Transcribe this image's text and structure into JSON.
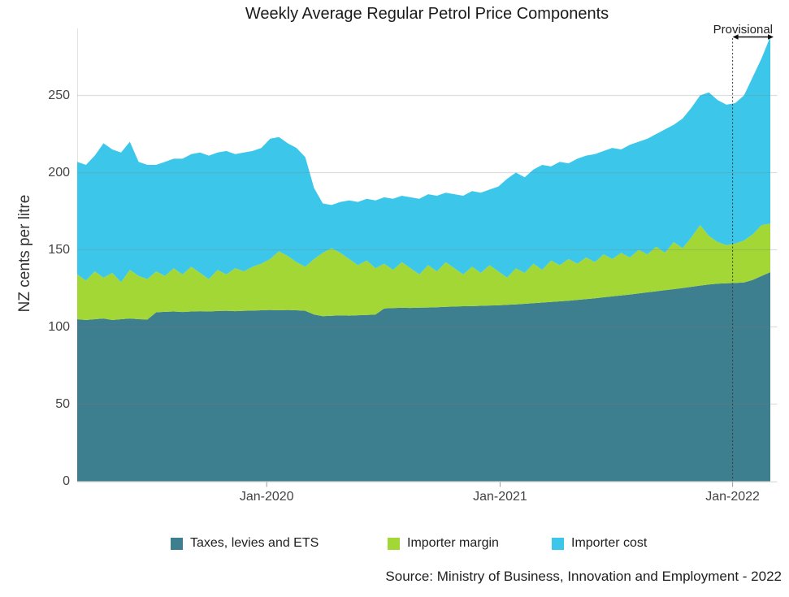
{
  "title": "Weekly Average Regular Petrol Price Components",
  "annotations": {
    "provisional_label": "Provisional"
  },
  "y_axis": {
    "label": "NZ cents per litre"
  },
  "source": "Source: Ministry of Business, Innovation and Employment - 2022",
  "chart_data": {
    "type": "area",
    "stacked": true,
    "title": "Weekly Average Regular Petrol Price Components",
    "xlabel": "",
    "ylabel": "NZ cents per litre",
    "ylim": [
      0,
      293
    ],
    "grid": true,
    "legend_position": "bottom",
    "x_unit": "week",
    "x_range_approx": [
      "Mar-2019",
      "Mar-2022"
    ],
    "y_ticks": [
      0,
      50,
      100,
      150,
      200,
      250
    ],
    "x_ticks": [
      {
        "label": "Jan-2020",
        "index": 21.6
      },
      {
        "label": "Jan-2021",
        "index": 48.2
      },
      {
        "label": "Jan-2022",
        "index": 74.7
      }
    ],
    "provisional_marker_index": 74.7,
    "series": [
      {
        "name": "Taxes, levies and ETS",
        "color": "#3E7F8F",
        "values": [
          105,
          104.5,
          105,
          105.5,
          104.5,
          105,
          105.5,
          105,
          104.8,
          109.5,
          109.8,
          110,
          109.7,
          110,
          110.2,
          110,
          110.3,
          110.5,
          110.2,
          110.5,
          110.6,
          110.8,
          111,
          110.8,
          111,
          110.8,
          110.5,
          108,
          107,
          107.2,
          107.5,
          107.3,
          107.6,
          107.8,
          108,
          112,
          112.2,
          112.4,
          112.3,
          112.5,
          112.6,
          112.8,
          113,
          113.2,
          113.4,
          113.5,
          113.7,
          113.9,
          114,
          114.3,
          114.6,
          115,
          115.4,
          115.8,
          116.2,
          116.6,
          117,
          117.5,
          118,
          118.6,
          119.2,
          119.8,
          120.4,
          121,
          121.7,
          122.4,
          123.1,
          123.8,
          124.5,
          125.2,
          126,
          126.8,
          127.5,
          128,
          128.3,
          128.5,
          128.8,
          130.5,
          133,
          135.5
        ]
      },
      {
        "name": "Importer margin",
        "color": "#A3D735",
        "values": [
          29,
          25.5,
          31,
          26.5,
          30.5,
          24,
          31.5,
          28,
          26.2,
          26.5,
          23.2,
          28,
          24.3,
          29,
          24.8,
          21,
          26.7,
          23.5,
          27.8,
          25.5,
          28.4,
          30.2,
          33,
          38.2,
          35,
          31.2,
          28.5,
          36,
          41,
          43.8,
          40.5,
          36.7,
          32.4,
          35.2,
          30,
          29,
          24.8,
          29.6,
          25.7,
          21.5,
          27.4,
          23.2,
          29,
          24.8,
          20.6,
          25.5,
          21.3,
          26.1,
          22,
          17.7,
          23.4,
          20,
          25.6,
          21.2,
          26.8,
          23.4,
          27,
          23.5,
          27,
          23.4,
          27.8,
          24.2,
          27.6,
          24,
          28.3,
          24.6,
          28.9,
          24.2,
          30.5,
          25.8,
          32,
          39.2,
          31.5,
          27,
          24.7,
          25.5,
          27.2,
          29.5,
          33,
          31.5
        ]
      },
      {
        "name": "Importer cost",
        "color": "#3CC7EA",
        "values": [
          73,
          75,
          75,
          87,
          80,
          84,
          83,
          74,
          74,
          69,
          74,
          71,
          75,
          73,
          78,
          80,
          76,
          80,
          74,
          77,
          75,
          75,
          78,
          74,
          73,
          74,
          71,
          46,
          32,
          28,
          33,
          38,
          41,
          40,
          44,
          43,
          46,
          43,
          46,
          49,
          46,
          49,
          45,
          48,
          51,
          49,
          52,
          49,
          55,
          64,
          62,
          62,
          61,
          68,
          61,
          67,
          62,
          68,
          66,
          70,
          67,
          72,
          67,
          73,
          70,
          75,
          73,
          80,
          76,
          84,
          84,
          84,
          93,
          92,
          91,
          91,
          94,
          102,
          108,
          121
        ]
      }
    ]
  }
}
